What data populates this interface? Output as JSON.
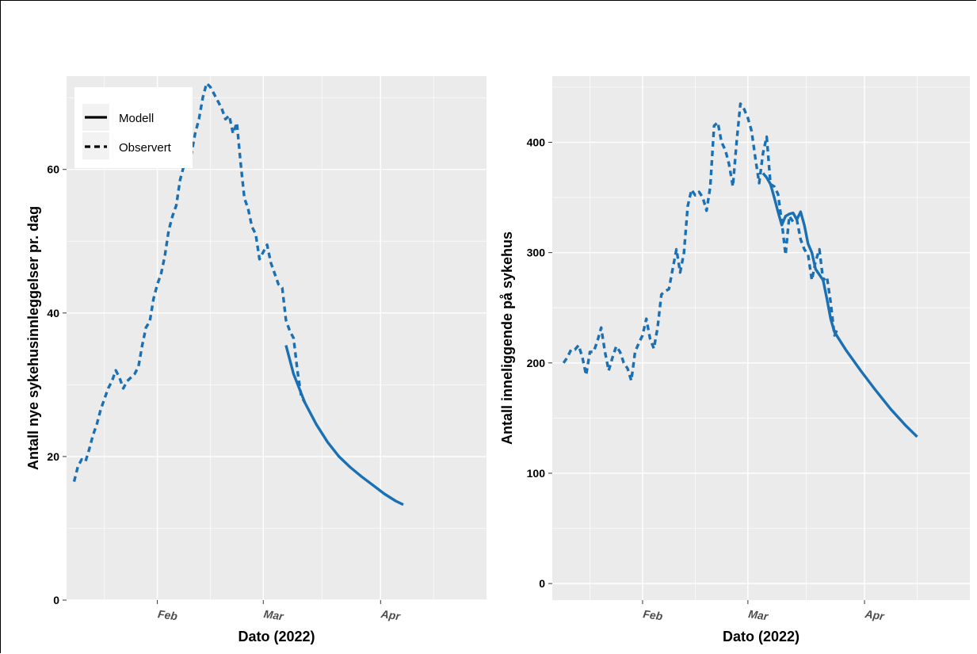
{
  "colors": {
    "series": "#1a70b3",
    "panel": "#ebebeb",
    "grid_major": "#ffffff",
    "tick_text": "#4d4d4d"
  },
  "legend": {
    "items": [
      {
        "label": "Modell",
        "linetype": "solid"
      },
      {
        "label": "Observert",
        "linetype": "dashed"
      }
    ],
    "placement": "top-left inside left panel"
  },
  "chart_data": [
    {
      "type": "line",
      "xlabel": "Dato (2022)",
      "ylabel": "Antall nye sykehusinnleggelser pr. dag",
      "xlim": [
        "2022-01-08",
        "2022-04-29"
      ],
      "ylim": [
        0,
        73
      ],
      "x_ticks": [
        {
          "date": "2022-02-01",
          "label": "Feb"
        },
        {
          "date": "2022-03-01",
          "label": "Mar"
        },
        {
          "date": "2022-04-01",
          "label": "Apr"
        }
      ],
      "y_ticks": [
        0,
        20,
        40,
        60
      ],
      "grid": true,
      "series": [
        {
          "name": "Observert",
          "linetype": "dashed",
          "points": [
            [
              "2022-01-10",
              16.5
            ],
            [
              "2022-01-11",
              18.6
            ],
            [
              "2022-01-12",
              19.6
            ],
            [
              "2022-01-13",
              19.3
            ],
            [
              "2022-01-14",
              21.0
            ],
            [
              "2022-01-15",
              23.0
            ],
            [
              "2022-01-16",
              24.5
            ],
            [
              "2022-01-17",
              26.5
            ],
            [
              "2022-01-18",
              28.0
            ],
            [
              "2022-01-19",
              29.5
            ],
            [
              "2022-01-20",
              30.5
            ],
            [
              "2022-01-21",
              32.0
            ],
            [
              "2022-01-22",
              31.0
            ],
            [
              "2022-01-23",
              29.5
            ],
            [
              "2022-01-24",
              30.5
            ],
            [
              "2022-01-25",
              31.0
            ],
            [
              "2022-01-26",
              31.5
            ],
            [
              "2022-01-27",
              32.5
            ],
            [
              "2022-01-28",
              35.5
            ],
            [
              "2022-01-29",
              38.0
            ],
            [
              "2022-01-30",
              38.8
            ],
            [
              "2022-01-31",
              42.0
            ],
            [
              "2022-02-01",
              44.0
            ],
            [
              "2022-02-02",
              45.5
            ],
            [
              "2022-02-03",
              48.0
            ],
            [
              "2022-02-04",
              51.5
            ],
            [
              "2022-02-05",
              53.5
            ],
            [
              "2022-02-06",
              55.0
            ],
            [
              "2022-02-07",
              58.5
            ],
            [
              "2022-02-08",
              60.5
            ],
            [
              "2022-02-09",
              62.0
            ],
            [
              "2022-02-10",
              62.2
            ],
            [
              "2022-02-11",
              65.0
            ],
            [
              "2022-02-12",
              67.0
            ],
            [
              "2022-02-13",
              70.0
            ],
            [
              "2022-02-14",
              72.0
            ],
            [
              "2022-02-15",
              71.5
            ],
            [
              "2022-02-16",
              70.5
            ],
            [
              "2022-02-17",
              69.5
            ],
            [
              "2022-02-18",
              68.5
            ],
            [
              "2022-02-19",
              67.0
            ],
            [
              "2022-02-20",
              67.5
            ],
            [
              "2022-02-21",
              65.0
            ],
            [
              "2022-02-22",
              66.5
            ],
            [
              "2022-02-23",
              61.0
            ],
            [
              "2022-02-24",
              56.0
            ],
            [
              "2022-02-25",
              54.5
            ],
            [
              "2022-02-26",
              52.0
            ],
            [
              "2022-02-27",
              51.0
            ],
            [
              "2022-02-28",
              47.5
            ],
            [
              "2022-03-01",
              48.5
            ],
            [
              "2022-03-02",
              49.5
            ],
            [
              "2022-03-03",
              47.0
            ],
            [
              "2022-03-04",
              45.5
            ],
            [
              "2022-03-05",
              44.0
            ],
            [
              "2022-03-06",
              43.5
            ],
            [
              "2022-03-07",
              39.0
            ],
            [
              "2022-03-08",
              37.5
            ],
            [
              "2022-03-09",
              36.5
            ],
            [
              "2022-03-10",
              32.0
            ],
            [
              "2022-03-11",
              28.5
            ],
            [
              "2022-03-12",
              27.5
            ]
          ]
        },
        {
          "name": "Modell",
          "linetype": "solid",
          "points": [
            [
              "2022-03-07",
              35.5
            ],
            [
              "2022-03-09",
              31.5
            ],
            [
              "2022-03-12",
              27.5
            ],
            [
              "2022-03-15",
              24.5
            ],
            [
              "2022-03-18",
              22.0
            ],
            [
              "2022-03-21",
              20.0
            ],
            [
              "2022-03-24",
              18.5
            ],
            [
              "2022-03-27",
              17.2
            ],
            [
              "2022-03-30",
              16.0
            ],
            [
              "2022-04-02",
              14.8
            ],
            [
              "2022-04-05",
              13.8
            ],
            [
              "2022-04-07",
              13.3
            ]
          ]
        }
      ]
    },
    {
      "type": "line",
      "xlabel": "Dato (2022)",
      "ylabel": "Antall inneliggende på sykehus",
      "xlim": [
        "2022-01-08",
        "2022-04-29"
      ],
      "ylim": [
        -15,
        460
      ],
      "x_ticks": [
        {
          "date": "2022-02-01",
          "label": "Feb"
        },
        {
          "date": "2022-03-01",
          "label": "Mar"
        },
        {
          "date": "2022-04-01",
          "label": "Apr"
        }
      ],
      "y_ticks": [
        0,
        100,
        200,
        300,
        400
      ],
      "grid": true,
      "series": [
        {
          "name": "Observert",
          "linetype": "dashed",
          "points": [
            [
              "2022-01-11",
              200
            ],
            [
              "2022-01-12",
              205
            ],
            [
              "2022-01-13",
              212
            ],
            [
              "2022-01-14",
              212
            ],
            [
              "2022-01-15",
              216
            ],
            [
              "2022-01-16",
              205
            ],
            [
              "2022-01-17",
              189
            ],
            [
              "2022-01-18",
              210
            ],
            [
              "2022-01-19",
              210
            ],
            [
              "2022-01-20",
              220
            ],
            [
              "2022-01-21",
              232
            ],
            [
              "2022-01-22",
              210
            ],
            [
              "2022-01-23",
              193
            ],
            [
              "2022-01-24",
              205
            ],
            [
              "2022-01-25",
              215
            ],
            [
              "2022-01-26",
              210
            ],
            [
              "2022-01-27",
              200
            ],
            [
              "2022-01-28",
              195
            ],
            [
              "2022-01-29",
              184
            ],
            [
              "2022-01-30",
              210
            ],
            [
              "2022-01-31",
              218
            ],
            [
              "2022-02-01",
              225
            ],
            [
              "2022-02-02",
              240
            ],
            [
              "2022-02-03",
              222
            ],
            [
              "2022-02-04",
              213
            ],
            [
              "2022-02-05",
              232
            ],
            [
              "2022-02-06",
              262
            ],
            [
              "2022-02-07",
              265
            ],
            [
              "2022-02-08",
              267
            ],
            [
              "2022-02-09",
              285
            ],
            [
              "2022-02-10",
              303
            ],
            [
              "2022-02-11",
              282
            ],
            [
              "2022-02-12",
              300
            ],
            [
              "2022-02-13",
              342
            ],
            [
              "2022-02-14",
              357
            ],
            [
              "2022-02-15",
              352
            ],
            [
              "2022-02-16",
              355
            ],
            [
              "2022-02-17",
              350
            ],
            [
              "2022-02-18",
              338
            ],
            [
              "2022-02-19",
              360
            ],
            [
              "2022-02-20",
              415
            ],
            [
              "2022-02-21",
              418
            ],
            [
              "2022-02-22",
              400
            ],
            [
              "2022-02-23",
              393
            ],
            [
              "2022-02-24",
              380
            ],
            [
              "2022-02-25",
              360
            ],
            [
              "2022-02-26",
              400
            ],
            [
              "2022-02-27",
              435
            ],
            [
              "2022-02-28",
              430
            ],
            [
              "2022-03-01",
              422
            ],
            [
              "2022-03-02",
              410
            ],
            [
              "2022-03-03",
              385
            ],
            [
              "2022-03-04",
              363
            ],
            [
              "2022-03-05",
              390
            ],
            [
              "2022-03-06",
              405
            ],
            [
              "2022-03-07",
              362
            ],
            [
              "2022-03-08",
              360
            ],
            [
              "2022-03-09",
              353
            ],
            [
              "2022-03-10",
              328
            ],
            [
              "2022-03-11",
              298
            ],
            [
              "2022-03-12",
              333
            ],
            [
              "2022-03-13",
              328
            ],
            [
              "2022-03-14",
              330
            ],
            [
              "2022-03-15",
              312
            ],
            [
              "2022-03-16",
              303
            ],
            [
              "2022-03-17",
              298
            ],
            [
              "2022-03-18",
              275
            ],
            [
              "2022-03-19",
              292
            ],
            [
              "2022-03-20",
              303
            ],
            [
              "2022-03-21",
              275
            ],
            [
              "2022-03-22",
              278
            ],
            [
              "2022-03-23",
              255
            ],
            [
              "2022-03-24",
              225
            ],
            [
              "2022-03-25",
              232
            ]
          ]
        },
        {
          "name": "Modell",
          "linetype": "solid",
          "points": [
            [
              "2022-03-05",
              372
            ],
            [
              "2022-03-06",
              368
            ],
            [
              "2022-03-07",
              362
            ],
            [
              "2022-03-08",
              350
            ],
            [
              "2022-03-09",
              337
            ],
            [
              "2022-03-10",
              325
            ],
            [
              "2022-03-11",
              333
            ],
            [
              "2022-03-12",
              335
            ],
            [
              "2022-03-13",
              336
            ],
            [
              "2022-03-14",
              330
            ],
            [
              "2022-03-15",
              337
            ],
            [
              "2022-03-16",
              325
            ],
            [
              "2022-03-17",
              308
            ],
            [
              "2022-03-18",
              300
            ],
            [
              "2022-03-19",
              285
            ],
            [
              "2022-03-20",
              280
            ],
            [
              "2022-03-21",
              275
            ],
            [
              "2022-03-22",
              258
            ],
            [
              "2022-03-23",
              240
            ],
            [
              "2022-03-24",
              228
            ],
            [
              "2022-03-27",
              212
            ],
            [
              "2022-03-31",
              193
            ],
            [
              "2022-04-04",
              175
            ],
            [
              "2022-04-08",
              158
            ],
            [
              "2022-04-12",
              143
            ],
            [
              "2022-04-15",
              133
            ]
          ]
        }
      ]
    }
  ]
}
